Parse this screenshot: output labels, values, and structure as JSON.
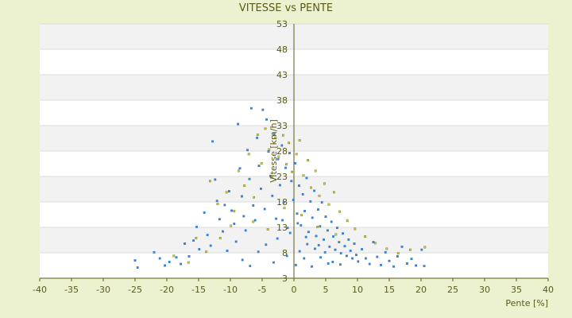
{
  "chart_data": {
    "type": "scatter",
    "title": "VITESSE vs PENTE",
    "xlabel": "Pente [%]",
    "ylabel": "Vitesse [km/h]",
    "xlim": [
      -40,
      40
    ],
    "ylim": [
      3,
      53
    ],
    "x_ticks": [
      "-40",
      "-35",
      "-30",
      "-25",
      "-20",
      "-15",
      "-10",
      "-5",
      "0",
      "5",
      "10",
      "15",
      "20",
      "25",
      "30",
      "35",
      "40"
    ],
    "y_ticks": [
      "3",
      "8",
      "13",
      "18",
      "23",
      "28",
      "33",
      "38",
      "43",
      "48",
      "53"
    ],
    "grid": "horizontal alternating bands",
    "series": [
      {
        "values": [
          [
            -25,
            6.5
          ],
          [
            -24.6,
            5.1
          ],
          [
            -22,
            8.1
          ],
          [
            -21.1,
            6.9
          ],
          [
            -20.3,
            5.5
          ],
          [
            -19.6,
            6.2
          ],
          [
            -18.5,
            7.1
          ],
          [
            -17.8,
            5.8
          ],
          [
            -17.2,
            9.8
          ],
          [
            -16.5,
            7.3
          ],
          [
            -15.8,
            10.4
          ],
          [
            -15.3,
            13.1
          ],
          [
            -14.9,
            8.7
          ],
          [
            -14.1,
            15.9
          ],
          [
            -13.6,
            11.5
          ],
          [
            -13.1,
            9.4
          ],
          [
            -12.8,
            29.9
          ],
          [
            -12.4,
            22.4
          ],
          [
            -12.1,
            18.2
          ],
          [
            -11.7,
            14.6
          ],
          [
            -11.2,
            12.2
          ],
          [
            -10.9,
            17.4
          ],
          [
            -10.5,
            8.4
          ],
          [
            -10.2,
            20.1
          ],
          [
            -9.8,
            16.3
          ],
          [
            -9.4,
            13.7
          ],
          [
            -9.1,
            10.2
          ],
          [
            -8.8,
            33.3
          ],
          [
            -8.5,
            24.6
          ],
          [
            -8.2,
            19.1
          ],
          [
            -7.9,
            15.2
          ],
          [
            -7.6,
            12.4
          ],
          [
            -7.3,
            28.2
          ],
          [
            -7,
            22.5
          ],
          [
            -6.7,
            36.4
          ],
          [
            -6.4,
            17.3
          ],
          [
            -6.1,
            14.4
          ],
          [
            -5.8,
            30.6
          ],
          [
            -5.5,
            25.1
          ],
          [
            -5.2,
            20.6
          ],
          [
            -4.9,
            36.1
          ],
          [
            -4.6,
            16.6
          ],
          [
            -4.3,
            34.2
          ],
          [
            -4,
            27.9
          ],
          [
            -3.7,
            23.1
          ],
          [
            -3.4,
            19.2
          ],
          [
            -3.1,
            31.3
          ],
          [
            -2.8,
            14.7
          ],
          [
            -2.5,
            26.4
          ],
          [
            -2.2,
            21.3
          ],
          [
            -1.9,
            29.1
          ],
          [
            -1.6,
            17.9
          ],
          [
            -1.3,
            24.7
          ],
          [
            -1,
            12.9
          ],
          [
            -0.7,
            27.6
          ],
          [
            -0.4,
            22.1
          ],
          [
            -0.1,
            18.4
          ],
          [
            0.2,
            25.6
          ],
          [
            0.5,
            15.7
          ],
          [
            0.8,
            21.2
          ],
          [
            1.1,
            13.4
          ],
          [
            1.4,
            19.5
          ],
          [
            1.7,
            16.2
          ],
          [
            2,
            22.7
          ],
          [
            2.3,
            12.1
          ],
          [
            2.6,
            18.1
          ],
          [
            2.9,
            14.9
          ],
          [
            3.2,
            20.2
          ],
          [
            3.5,
            11.3
          ],
          [
            3.8,
            16.5
          ],
          [
            4.1,
            13.2
          ],
          [
            4.4,
            17.9
          ],
          [
            4.7,
            10.6
          ],
          [
            5,
            15.1
          ],
          [
            5.3,
            12.4
          ],
          [
            5.6,
            9.2
          ],
          [
            5.9,
            14.1
          ],
          [
            6.2,
            11.2
          ],
          [
            6.5,
            8.6
          ],
          [
            6.8,
            12.9
          ],
          [
            7.1,
            10.1
          ],
          [
            7.4,
            7.9
          ],
          [
            7.7,
            11.8
          ],
          [
            8,
            9.3
          ],
          [
            8.3,
            7.4
          ],
          [
            8.6,
            10.6
          ],
          [
            8.9,
            8.4
          ],
          [
            9.2,
            6.9
          ],
          [
            9.5,
            9.8
          ],
          [
            9.8,
            7.6
          ],
          [
            10.1,
            6.3
          ],
          [
            10.7,
            8.7
          ],
          [
            11.3,
            6.9
          ],
          [
            11.9,
            5.8
          ],
          [
            12.5,
            10.1
          ],
          [
            13.1,
            7.2
          ],
          [
            13.7,
            5.6
          ],
          [
            14.4,
            8.1
          ],
          [
            15,
            6.4
          ],
          [
            15.7,
            5.3
          ],
          [
            16.3,
            7.3
          ],
          [
            17,
            9.2
          ],
          [
            17.8,
            5.9
          ],
          [
            18.5,
            6.8
          ],
          [
            19.2,
            5.5
          ],
          [
            20.1,
            8.6
          ],
          [
            20.5,
            5.4
          ],
          [
            -5.6,
            8.2
          ],
          [
            -3.2,
            6.1
          ],
          [
            -1.1,
            7.4
          ],
          [
            0.3,
            5.6
          ],
          [
            1.6,
            6.9
          ],
          [
            2.8,
            5.3
          ],
          [
            4.2,
            7.1
          ],
          [
            5.4,
            5.9
          ],
          [
            -8.1,
            6.6
          ],
          [
            -6.9,
            5.4
          ],
          [
            -4.4,
            9.6
          ],
          [
            -2.6,
            10.8
          ],
          [
            0.9,
            8.3
          ],
          [
            2.1,
            9.7
          ],
          [
            3.3,
            8.8
          ],
          [
            6.1,
            6.2
          ],
          [
            7.3,
            5.7
          ],
          [
            -0.6,
            11.9
          ],
          [
            0.6,
            13.8
          ],
          [
            1.9,
            11.1
          ],
          [
            -1.8,
            14.4
          ],
          [
            3.9,
            9.5
          ],
          [
            4.9,
            8.1
          ]
        ]
      },
      {
        "values": [
          [
            -15.4,
            10.9
          ],
          [
            -13.2,
            22.1
          ],
          [
            -12,
            17.6
          ],
          [
            -10.6,
            19.9
          ],
          [
            -9.4,
            16.2
          ],
          [
            -8.7,
            24.1
          ],
          [
            -7.8,
            21.2
          ],
          [
            -7.1,
            27.4
          ],
          [
            -6.3,
            18.9
          ],
          [
            -5.7,
            31.2
          ],
          [
            -5.1,
            25.6
          ],
          [
            -4.5,
            32.4
          ],
          [
            -3.9,
            28.3
          ],
          [
            -3.5,
            22.8
          ],
          [
            -2.9,
            30.6
          ],
          [
            -2.4,
            26.9
          ],
          [
            -1.7,
            31.1
          ],
          [
            -1.2,
            25.4
          ],
          [
            -0.8,
            29.6
          ],
          [
            -0.3,
            23.9
          ],
          [
            0.4,
            27.4
          ],
          [
            0.9,
            30.1
          ],
          [
            1.5,
            23.2
          ],
          [
            2.2,
            26.2
          ],
          [
            2.7,
            20.8
          ],
          [
            3.4,
            24.1
          ],
          [
            4,
            19.2
          ],
          [
            4.8,
            21.6
          ],
          [
            5.5,
            17.5
          ],
          [
            6.3,
            19.9
          ],
          [
            7.2,
            16.1
          ],
          [
            8.4,
            14.3
          ],
          [
            9.6,
            12.7
          ],
          [
            11.2,
            11.2
          ],
          [
            12.8,
            9.9
          ],
          [
            14.6,
            8.8
          ],
          [
            16.4,
            7.9
          ],
          [
            18.3,
            8.6
          ],
          [
            20.6,
            9.1
          ],
          [
            -9.9,
            13.3
          ],
          [
            -11.6,
            10.9
          ],
          [
            -13.8,
            8.2
          ],
          [
            -16.6,
            6.1
          ],
          [
            -18.9,
            7.4
          ],
          [
            -6.4,
            14.1
          ],
          [
            -4.1,
            12.6
          ],
          [
            -1.5,
            16.8
          ],
          [
            1.2,
            15.4
          ],
          [
            3.7,
            13.1
          ],
          [
            6.6,
            11.6
          ]
        ]
      }
    ]
  }
}
